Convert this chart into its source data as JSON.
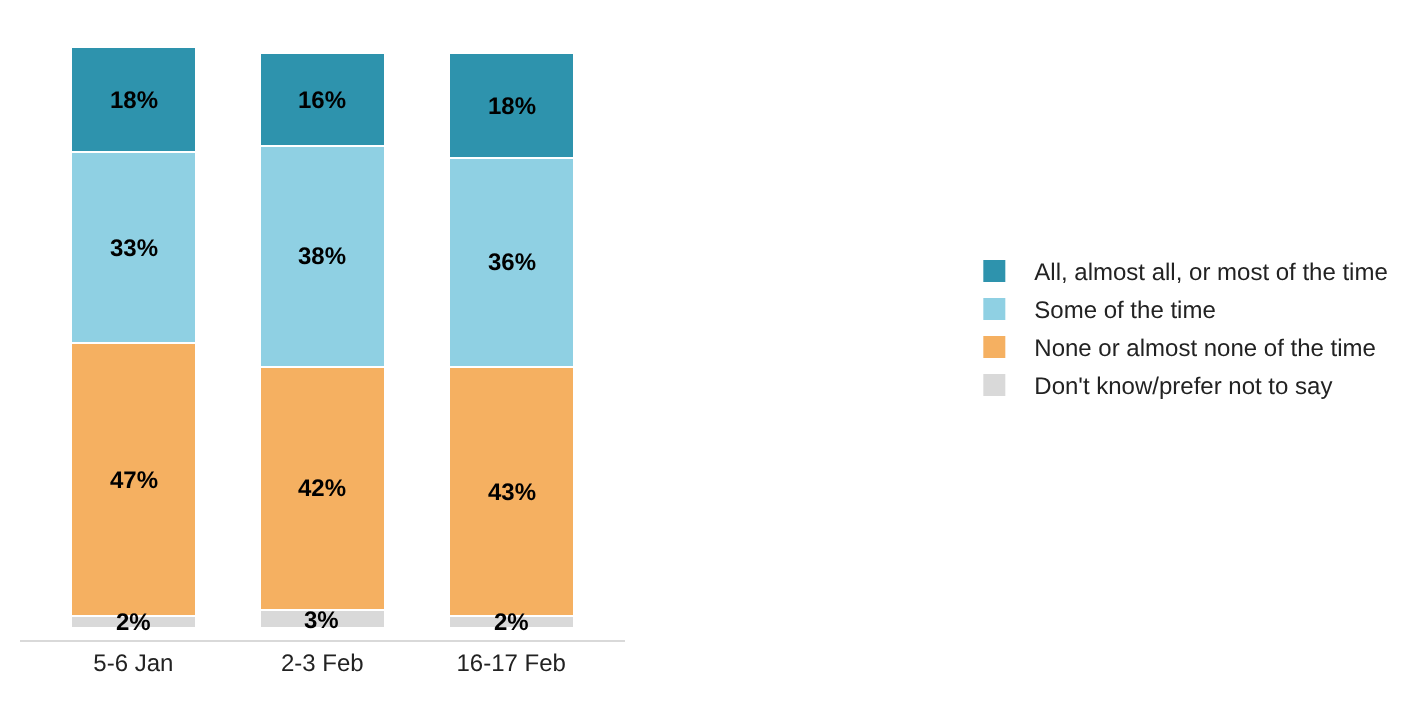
{
  "chart_data": {
    "type": "bar",
    "stacked": true,
    "legend": "right",
    "categories": [
      "5-6 Jan",
      "2-3 Feb",
      "16-17 Feb"
    ],
    "series": [
      {
        "name": "Don't know/prefer not to say",
        "color": "#d9d9d9",
        "values": [
          2,
          3,
          2
        ],
        "value_labels": [
          "2%",
          "3%",
          "2%"
        ]
      },
      {
        "name": "None or almost none of the time",
        "color": "#f5b061",
        "values": [
          47,
          42,
          43
        ],
        "value_labels": [
          "47%",
          "42%",
          "43%"
        ]
      },
      {
        "name": "Some of the time",
        "color": "#8fd0e3",
        "values": [
          33,
          38,
          36
        ],
        "value_labels": [
          "33%",
          "38%",
          "36%"
        ]
      },
      {
        "name": "All, almost all, or most of the time",
        "color": "#2e93ad",
        "values": [
          18,
          16,
          18
        ],
        "value_labels": [
          "18%",
          "16%",
          "18%"
        ]
      }
    ]
  }
}
